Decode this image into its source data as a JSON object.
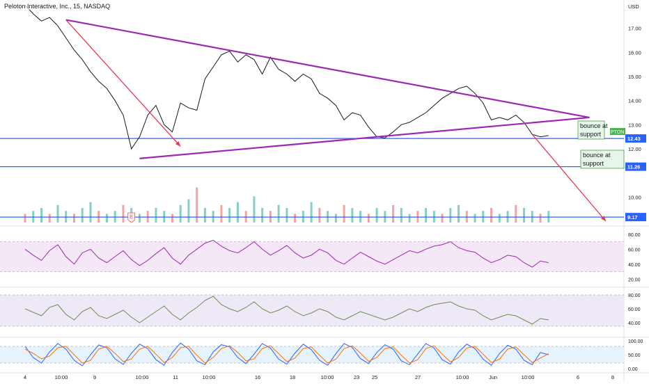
{
  "header": {
    "title": "Peloton Interactive, Inc., 15, NASDAQ"
  },
  "colors": {
    "up": "#26a69a",
    "down": "#ef5350",
    "price": "#131722",
    "trendline": "#9c27b0",
    "arrow": "#e53950",
    "support": "#2962ff",
    "rsi": "#9c27b0",
    "osc2": "#6b8e4e",
    "stoch_k": "#2962ff",
    "stoch_d": "#ff6d00",
    "band_rsi": "#f3e5f5",
    "band_osc": "#ede7f6",
    "band_stoch": "#e3f2fd"
  },
  "chart_data": {
    "type": "line",
    "symbol": "PTON",
    "interval": "15",
    "exchange": "NASDAQ",
    "currency": "USD",
    "x_tick_labels": [
      "4",
      "10:00",
      "9",
      "10:00",
      "11",
      "10:00",
      "16",
      "18",
      "10:00",
      "23",
      "25",
      "27",
      "10:00",
      "Jun",
      "10:00",
      "6",
      "8",
      "10:00"
    ],
    "price_axis_ticks": [
      "17.00",
      "16.00",
      "15.00",
      "14.00",
      "13.00",
      "12.00",
      "10.00"
    ],
    "price_ylim": [
      9.0,
      18.0
    ],
    "price_series": [
      {
        "t": 0,
        "p": 17.95
      },
      {
        "t": 2,
        "p": 17.6
      },
      {
        "t": 4,
        "p": 17.3
      },
      {
        "t": 6,
        "p": 17.45
      },
      {
        "t": 8,
        "p": 17.1
      },
      {
        "t": 10,
        "p": 16.6
      },
      {
        "t": 12,
        "p": 16.1
      },
      {
        "t": 14,
        "p": 15.7
      },
      {
        "t": 16,
        "p": 15.2
      },
      {
        "t": 18,
        "p": 14.8
      },
      {
        "t": 20,
        "p": 14.5
      },
      {
        "t": 22,
        "p": 14.0
      },
      {
        "t": 24,
        "p": 13.4
      },
      {
        "t": 26,
        "p": 12.0
      },
      {
        "t": 28,
        "p": 12.5
      },
      {
        "t": 30,
        "p": 13.4
      },
      {
        "t": 32,
        "p": 13.8
      },
      {
        "t": 34,
        "p": 13.0
      },
      {
        "t": 36,
        "p": 12.7
      },
      {
        "t": 38,
        "p": 13.9
      },
      {
        "t": 40,
        "p": 13.7
      },
      {
        "t": 42,
        "p": 13.6
      },
      {
        "t": 44,
        "p": 14.9
      },
      {
        "t": 46,
        "p": 15.4
      },
      {
        "t": 48,
        "p": 15.9
      },
      {
        "t": 50,
        "p": 16.05
      },
      {
        "t": 52,
        "p": 15.6
      },
      {
        "t": 54,
        "p": 15.9
      },
      {
        "t": 56,
        "p": 15.7
      },
      {
        "t": 58,
        "p": 15.1
      },
      {
        "t": 60,
        "p": 15.8
      },
      {
        "t": 62,
        "p": 15.3
      },
      {
        "t": 64,
        "p": 15.1
      },
      {
        "t": 66,
        "p": 14.8
      },
      {
        "t": 68,
        "p": 15.1
      },
      {
        "t": 70,
        "p": 14.9
      },
      {
        "t": 72,
        "p": 14.3
      },
      {
        "t": 74,
        "p": 14.1
      },
      {
        "t": 76,
        "p": 13.8
      },
      {
        "t": 78,
        "p": 13.2
      },
      {
        "t": 80,
        "p": 13.5
      },
      {
        "t": 82,
        "p": 13.4
      },
      {
        "t": 84,
        "p": 12.9
      },
      {
        "t": 86,
        "p": 12.5
      },
      {
        "t": 88,
        "p": 12.45
      },
      {
        "t": 90,
        "p": 12.7
      },
      {
        "t": 92,
        "p": 13.0
      },
      {
        "t": 94,
        "p": 13.1
      },
      {
        "t": 96,
        "p": 13.3
      },
      {
        "t": 98,
        "p": 13.5
      },
      {
        "t": 100,
        "p": 13.8
      },
      {
        "t": 102,
        "p": 14.1
      },
      {
        "t": 104,
        "p": 14.3
      },
      {
        "t": 106,
        "p": 14.5
      },
      {
        "t": 108,
        "p": 14.6
      },
      {
        "t": 110,
        "p": 14.3
      },
      {
        "t": 112,
        "p": 13.9
      },
      {
        "t": 114,
        "p": 13.2
      },
      {
        "t": 116,
        "p": 13.3
      },
      {
        "t": 118,
        "p": 13.2
      },
      {
        "t": 120,
        "p": 13.4
      },
      {
        "t": 122,
        "p": 13.1
      },
      {
        "t": 124,
        "p": 12.6
      },
      {
        "t": 126,
        "p": 12.5
      },
      {
        "t": 128,
        "p": 12.55
      }
    ],
    "volume": [
      3,
      4,
      5,
      3,
      6,
      4,
      3,
      5,
      7,
      4,
      3,
      4,
      6,
      5,
      3,
      4,
      5,
      4,
      3,
      6,
      8,
      12,
      5,
      4,
      6,
      5,
      7,
      4,
      9,
      5,
      4,
      6,
      5,
      3,
      4,
      7,
      5,
      4,
      3,
      6,
      5,
      4,
      3,
      5,
      4,
      6,
      5,
      3,
      4,
      5,
      4,
      3,
      5,
      6,
      4,
      3,
      4,
      5,
      3,
      4,
      6,
      5,
      4,
      3,
      4
    ],
    "trendlines": [
      {
        "x1": 10,
        "p1": 17.35,
        "x2": 138,
        "p2": 13.3
      },
      {
        "x1": 28,
        "p1": 11.6,
        "x2": 138,
        "p2": 13.3
      }
    ],
    "arrows": [
      {
        "x1": 10,
        "p1": 17.35,
        "x2": 38,
        "p2": 12.1
      },
      {
        "x1": 124,
        "p1": 12.6,
        "x2": 142,
        "p2": 9.0
      }
    ],
    "support_lines": [
      {
        "p": 12.43,
        "label": "12.43"
      },
      {
        "p": 11.26,
        "label": "11.26"
      },
      {
        "p": 9.17,
        "label": "9.17"
      }
    ],
    "last_price_tag": "PTON",
    "notes": [
      "bounce at support",
      "bounce at support"
    ],
    "earnings_marker": "E",
    "indicators": [
      {
        "name": "rsi",
        "axis": [
          "80.00",
          "60.00",
          "40.00",
          "20.00"
        ],
        "ylim": [
          10,
          90
        ],
        "band": [
          30,
          70
        ],
        "values": [
          60,
          52,
          45,
          58,
          66,
          50,
          40,
          55,
          60,
          48,
          42,
          50,
          58,
          46,
          38,
          45,
          54,
          62,
          48,
          40,
          52,
          60,
          68,
          72,
          64,
          58,
          55,
          62,
          70,
          60,
          52,
          58,
          65,
          55,
          48,
          52,
          60,
          55,
          45,
          40,
          48,
          56,
          50,
          44,
          40,
          46,
          52,
          58,
          55,
          60,
          64,
          66,
          70,
          62,
          58,
          56,
          48,
          42,
          46,
          52,
          50,
          42,
          36,
          44,
          42
        ]
      },
      {
        "name": "osc",
        "axis": [
          "80.00",
          "60.00",
          "40.00"
        ],
        "ylim": [
          20,
          90
        ],
        "band": [
          35,
          80
        ],
        "values": [
          60,
          55,
          50,
          62,
          66,
          52,
          44,
          56,
          62,
          50,
          46,
          52,
          58,
          48,
          40,
          48,
          56,
          64,
          52,
          44,
          54,
          62,
          72,
          78,
          66,
          60,
          56,
          62,
          70,
          60,
          54,
          58,
          64,
          56,
          50,
          54,
          60,
          56,
          48,
          44,
          50,
          56,
          52,
          48,
          44,
          48,
          54,
          60,
          56,
          62,
          66,
          68,
          70,
          64,
          60,
          58,
          50,
          44,
          48,
          52,
          50,
          44,
          38,
          46,
          44
        ]
      },
      {
        "name": "stoch",
        "axis": [
          "100.00",
          "50.00",
          "0.00"
        ],
        "ylim": [
          -10,
          110
        ],
        "band": [
          20,
          80
        ],
        "k": [
          80,
          40,
          20,
          60,
          90,
          70,
          30,
          10,
          50,
          85,
          75,
          35,
          15,
          55,
          88,
          72,
          32,
          12,
          58,
          92,
          70,
          28,
          14,
          60,
          86,
          78,
          40,
          18,
          52,
          90,
          74,
          34,
          16,
          56,
          88,
          68,
          30,
          12,
          54,
          90,
          76,
          36,
          18,
          58,
          86,
          70,
          28,
          14,
          52,
          90,
          74,
          32,
          16,
          60,
          88,
          72,
          34,
          12,
          54,
          84,
          70,
          30,
          14,
          58,
          50
        ],
        "d": [
          70,
          55,
          35,
          45,
          75,
          80,
          50,
          20,
          30,
          70,
          80,
          55,
          25,
          35,
          70,
          80,
          52,
          22,
          40,
          75,
          80,
          48,
          20,
          40,
          72,
          82,
          58,
          28,
          35,
          72,
          82,
          54,
          25,
          38,
          72,
          78,
          48,
          20,
          34,
          72,
          82,
          56,
          26,
          40,
          72,
          78,
          48,
          20,
          32,
          72,
          82,
          52,
          24,
          40,
          74,
          80,
          52,
          22,
          34,
          70,
          78,
          50,
          22,
          38,
          54
        ]
      }
    ]
  }
}
